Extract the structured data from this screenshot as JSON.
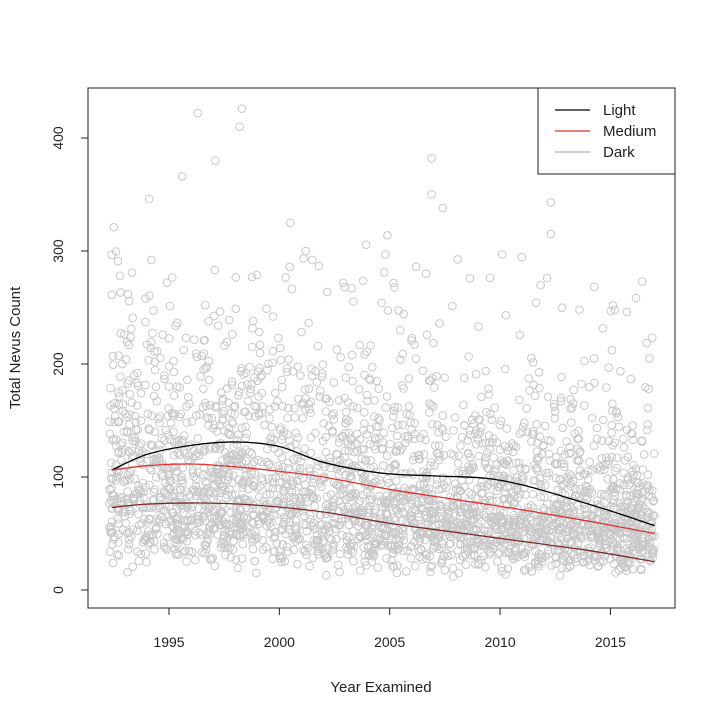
{
  "chart_data": {
    "type": "scatter",
    "title": "",
    "xlabel": "Year Examined",
    "ylabel": "Total Nevus Count",
    "xlim": [
      1991.7,
      2017.5
    ],
    "ylim": [
      -20,
      445
    ],
    "x_ticks": [
      1995,
      2000,
      2005,
      2010,
      2015
    ],
    "x_tick_labels": [
      "1995",
      "2000",
      "2005",
      "2010",
      "2015"
    ],
    "y_ticks": [
      0,
      100,
      200,
      300,
      400
    ],
    "y_tick_labels": [
      "0",
      "100",
      "200",
      "300",
      "400"
    ],
    "grid": false,
    "legend": {
      "placement": "top-right",
      "entries": [
        {
          "label": "Light",
          "color": "#000000"
        },
        {
          "label": "Medium",
          "color": "#e03030"
        },
        {
          "label": "Dark",
          "color": "#b0b0b0"
        }
      ]
    },
    "scatter": {
      "color": "#c8c8c8",
      "marker": "open-circle",
      "approx_count": 3000,
      "x_range": [
        1992.3,
        2017
      ],
      "typical_center": 80,
      "outliers": [
        [
          1996.3,
          422
        ],
        [
          1998.3,
          426
        ],
        [
          1998.2,
          410
        ],
        [
          1997.1,
          380
        ],
        [
          1995.6,
          366
        ],
        [
          1994.1,
          346
        ],
        [
          2006.9,
          382
        ],
        [
          2006.9,
          350
        ],
        [
          2007.4,
          338
        ],
        [
          2012.3,
          343
        ],
        [
          2012.3,
          315
        ],
        [
          1992.5,
          321
        ],
        [
          2000.5,
          325
        ],
        [
          2001.2,
          300
        ],
        [
          2010.1,
          297
        ],
        [
          2004.8,
          297
        ],
        [
          2006.2,
          286
        ],
        [
          2013.6,
          248
        ],
        [
          2015.2,
          248
        ],
        [
          2016.7,
          161
        ]
      ]
    },
    "series": [
      {
        "name": "Light",
        "color": "#000000",
        "x": [
          1992.4,
          1994,
          1996,
          1998,
          2000,
          2002,
          2004.6,
          2007,
          2009.3,
          2011,
          2013,
          2015,
          2017
        ],
        "y": [
          106,
          120,
          128,
          131,
          127,
          113,
          103.5,
          101,
          99,
          93,
          82,
          70,
          57
        ]
      },
      {
        "name": "Medium",
        "color": "#e03030",
        "x": [
          1992.4,
          1994,
          1996,
          1998,
          2000,
          2002,
          2005,
          2008,
          2011,
          2014,
          2017
        ],
        "y": [
          106,
          110,
          111.5,
          109,
          105,
          100,
          89,
          80,
          71,
          61,
          50
        ]
      },
      {
        "name": "Dark",
        "color": "#7a2a2a",
        "x": [
          1992.4,
          1994,
          1996.5,
          1999,
          2002,
          2005,
          2008,
          2011,
          2014,
          2017
        ],
        "y": [
          73,
          76,
          77,
          75,
          69,
          59,
          51,
          43,
          35,
          25
        ]
      }
    ]
  }
}
